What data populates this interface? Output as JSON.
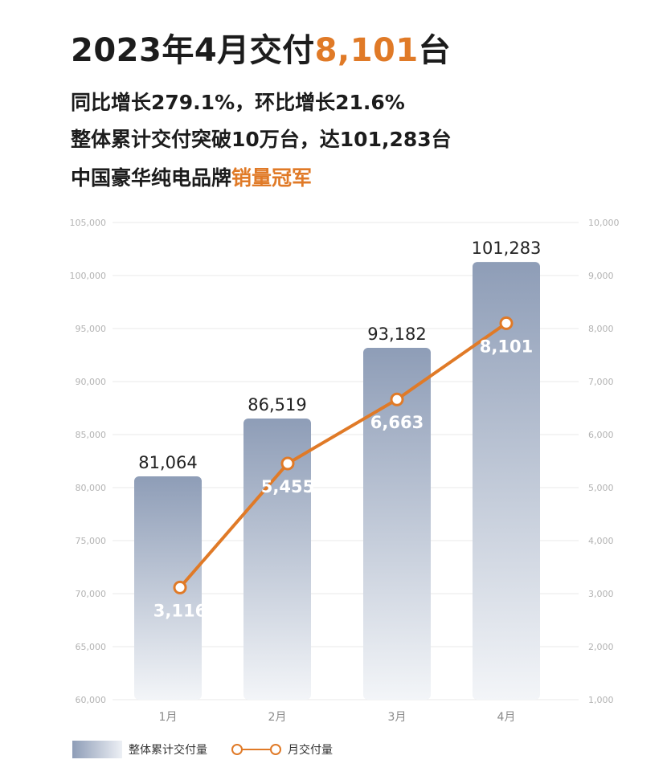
{
  "header": {
    "title_prefix": "2023年4月交付",
    "title_number": "8,101",
    "title_suffix": "台",
    "line1": "同比增长279.1%，环比增长21.6%",
    "line2": "整体累计交付突破10万台，达101,283台",
    "line3_prefix": "中国豪华纯电品牌",
    "line3_highlight": "销量冠军"
  },
  "colors": {
    "accent": "#e07a27",
    "bar_top": "#8e9db7",
    "bar_bottom": "#f3f5f8",
    "grid": "#e9e9e9"
  },
  "legend": {
    "bar_label": "整体累计交付量",
    "line_label": "月交付量"
  },
  "chart_data": {
    "type": "bar+line",
    "categories": [
      "1月",
      "2月",
      "3月",
      "4月"
    ],
    "series": [
      {
        "name": "整体累计交付量",
        "type": "bar",
        "axis": "left",
        "values": [
          81064,
          86519,
          93182,
          101283
        ],
        "labels": [
          "81,064",
          "86,519",
          "93,182",
          "101,283"
        ]
      },
      {
        "name": "月交付量",
        "type": "line",
        "axis": "right",
        "values": [
          3116,
          5455,
          6663,
          8101
        ],
        "labels": [
          "3,116",
          "5,455",
          "6,663",
          "8,101"
        ]
      }
    ],
    "left_axis": {
      "min": 60000,
      "max": 105000,
      "ticks": [
        "60,000",
        "65,000",
        "70,000",
        "75,000",
        "80,000",
        "85,000",
        "90,000",
        "95,000",
        "100,000",
        "105,000"
      ]
    },
    "right_axis": {
      "min": 1000,
      "max": 10000,
      "ticks": [
        "1,000",
        "2,000",
        "3,000",
        "4,000",
        "5,000",
        "6,000",
        "7,000",
        "8,000",
        "9,000",
        "10,000"
      ]
    },
    "grid": true,
    "legend_position": "bottom-left"
  }
}
